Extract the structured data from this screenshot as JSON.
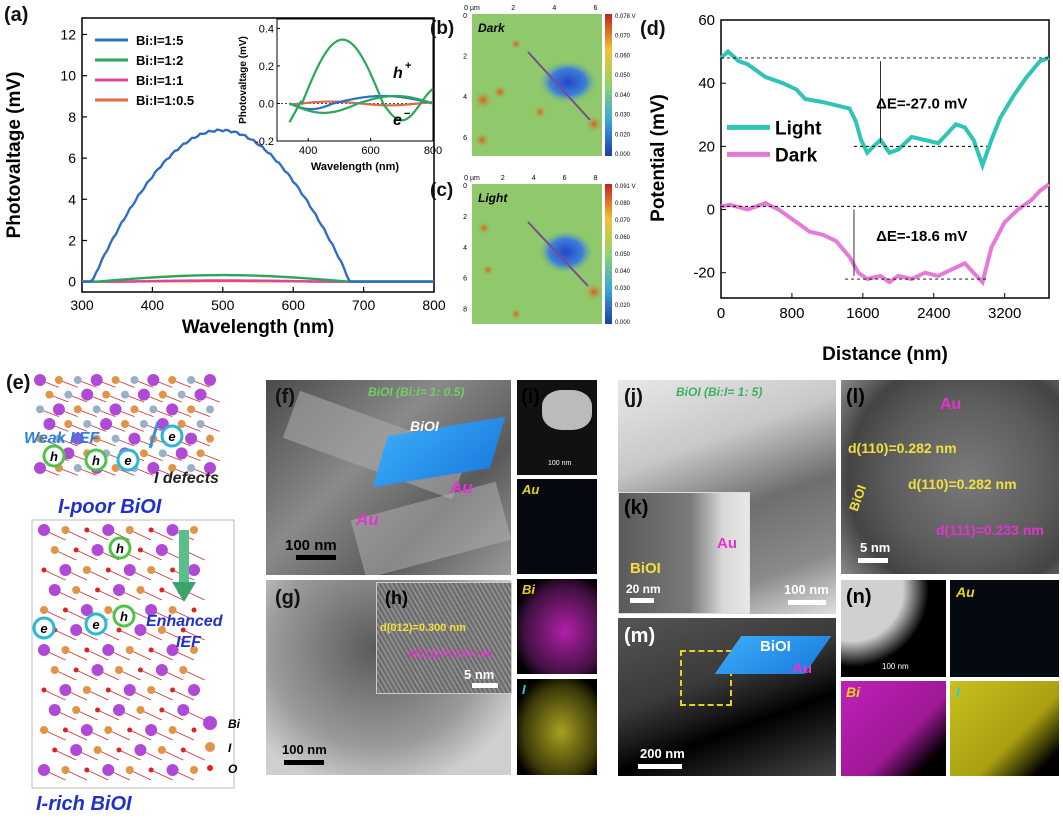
{
  "panels": {
    "a": "(a)",
    "b": "(b)",
    "c": "(c)",
    "d": "(d)",
    "e": "(e)",
    "f": "(f)",
    "g": "(g)",
    "h": "(h)",
    "i": "(i)",
    "j": "(j)",
    "k": "(k)",
    "l": "(l)",
    "m": "(m)",
    "n": "(n)"
  },
  "panel_a": {
    "ylabel": "Photovaltage (mV)",
    "xlabel": "Wavelength (nm)",
    "legend": [
      "Bi:I=1:5",
      "Bi:I=1:2",
      "Bi:I=1:1",
      "Bi:I=1:0.5"
    ],
    "colors": [
      "#2e6fc4",
      "#2aa85a",
      "#e0459b",
      "#e06a4a"
    ],
    "xticks": [
      "300",
      "400",
      "500",
      "600",
      "700",
      "800"
    ],
    "yticks": [
      "0",
      "2",
      "4",
      "6",
      "8",
      "10",
      "12"
    ],
    "inset": {
      "ylabel": "Photovaltage (mV)",
      "xlabel": "Wavelength (nm)",
      "xticks": [
        "400",
        "600",
        "800"
      ],
      "yticks": [
        "-0.2",
        "0.0",
        "0.2",
        "0.4"
      ],
      "hplus": "h",
      "eminus": "e"
    }
  },
  "panel_b": {
    "label": "Dark",
    "top_ticks": [
      "0 µm",
      "2",
      "4",
      "6"
    ],
    "side_ticks": [
      "0",
      "2",
      "4",
      "6"
    ],
    "scale": [
      "0.078 V",
      "0.070",
      "0.060",
      "0.050",
      "0.040",
      "0.030",
      "0.020",
      "0.000"
    ]
  },
  "panel_c": {
    "label": "Light",
    "top_ticks": [
      "0 µm",
      "2",
      "4",
      "6",
      "8"
    ],
    "side_ticks": [
      "0",
      "2",
      "4",
      "6",
      "8"
    ],
    "scale": [
      "0.091 V",
      "0.080",
      "0.070",
      "0.060",
      "0.050",
      "0.040",
      "0.030",
      "0.020",
      "0.000"
    ]
  },
  "panel_d": {
    "ylabel": "Potential (mV)",
    "xlabel": "Distance (nm)",
    "legend": [
      "Light",
      "Dark"
    ],
    "colors": [
      "#2fc4b5",
      "#e57ad9"
    ],
    "xticks": [
      "0",
      "800",
      "1600",
      "2400",
      "3200"
    ],
    "yticks": [
      "-20",
      "0",
      "20",
      "40",
      "60"
    ],
    "ann1": "ΔE=-27.0 mV",
    "ann2": "ΔE=-18.6 mV"
  },
  "panel_e": {
    "weak": "Weak IIEF",
    "idefects": "I defects",
    "ipoor": "I-poor BiOI",
    "enhanced1": "Enhanced",
    "enhanced2": "IEF",
    "irich": "I-rich BiOI",
    "legend": [
      "Bi",
      "I",
      "O"
    ],
    "h": "h",
    "e": "e"
  },
  "panel_f": {
    "title": "BiOI (Bi:I= 1: 0.5)",
    "biol": "BiOI",
    "au1": "Au",
    "au2": "Au",
    "scale": "100 nm"
  },
  "panel_g": {
    "scale": "100 nm"
  },
  "panel_h": {
    "d1": "d(012)=0.300 nm",
    "d2": "d(111)=0.233 nm",
    "scale": "5 nm"
  },
  "panel_i": {
    "labels": [
      "Au",
      "Bi",
      "I"
    ],
    "scale": "100 nm"
  },
  "panel_j": {
    "title": "BiOI (Bi:I= 1: 5)",
    "scale": "100 nm"
  },
  "panel_k": {
    "biol": "BiOI",
    "au": "Au",
    "scale": "20 nm"
  },
  "panel_l": {
    "au": "Au",
    "d1": "d(110)=0.282 nm",
    "d2": "d(110)=0.282 nm",
    "d3": "d(111)=0.233 nm",
    "biol": "BiOI",
    "scale": "5 nm"
  },
  "panel_m": {
    "biol": "BiOI",
    "au": "Au",
    "scale": "200 nm"
  },
  "panel_n": {
    "labels": [
      "Au",
      "Bi",
      "I"
    ],
    "scale": "100 nm"
  }
}
